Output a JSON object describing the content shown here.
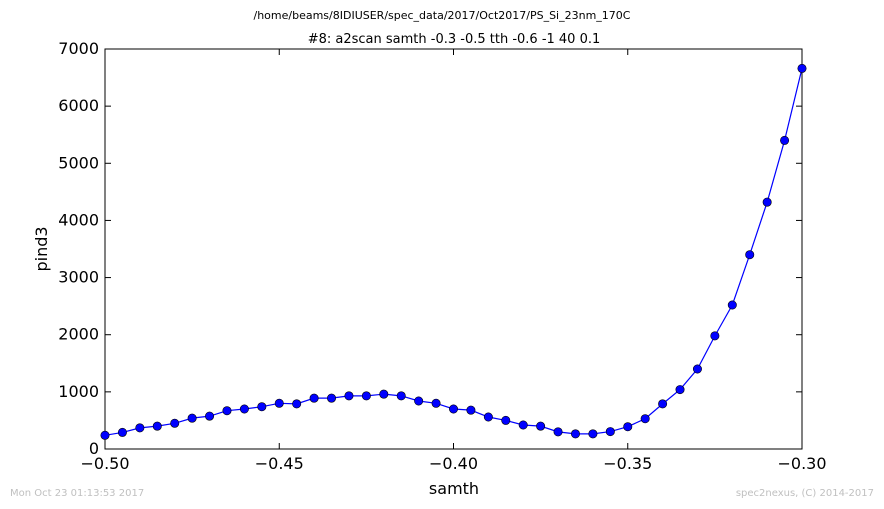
{
  "chart_data": {
    "type": "line",
    "suptitle": "/home/beams/8IDIUSER/spec_data/2017/Oct2017/PS_Si_23nm_170C",
    "title": "#8: a2scan  samth -0.3 -0.5  tth -0.6 -1  40 0.1",
    "xlabel": "samth",
    "ylabel": "pind3",
    "xlim": [
      -0.5,
      -0.3
    ],
    "ylim": [
      0,
      7000
    ],
    "xticks": [
      -0.5,
      -0.45,
      -0.4,
      -0.35,
      -0.3
    ],
    "xtick_labels": [
      "−0.50",
      "−0.45",
      "−0.40",
      "−0.35",
      "−0.30"
    ],
    "yticks": [
      0,
      1000,
      2000,
      3000,
      4000,
      5000,
      6000,
      7000
    ],
    "ytick_labels": [
      "0",
      "1000",
      "2000",
      "3000",
      "4000",
      "5000",
      "6000",
      "7000"
    ],
    "grid": false,
    "series": [
      {
        "color": "#0000ff",
        "marker": "circle",
        "x": [
          -0.5,
          -0.495,
          -0.49,
          -0.485,
          -0.48,
          -0.475,
          -0.47,
          -0.465,
          -0.46,
          -0.455,
          -0.45,
          -0.445,
          -0.44,
          -0.435,
          -0.43,
          -0.425,
          -0.42,
          -0.415,
          -0.41,
          -0.405,
          -0.4,
          -0.395,
          -0.39,
          -0.385,
          -0.38,
          -0.375,
          -0.37,
          -0.365,
          -0.36,
          -0.355,
          -0.35,
          -0.345,
          -0.34,
          -0.335,
          -0.33,
          -0.325,
          -0.32,
          -0.315,
          -0.31,
          -0.305,
          -0.3
        ],
        "y": [
          240,
          290,
          370,
          400,
          450,
          540,
          575,
          670,
          700,
          740,
          800,
          790,
          890,
          890,
          930,
          930,
          960,
          930,
          840,
          800,
          700,
          680,
          560,
          500,
          420,
          400,
          300,
          265,
          265,
          305,
          390,
          530,
          790,
          1040,
          1400,
          1980,
          2520,
          3400,
          4320,
          5400,
          6660
        ]
      }
    ]
  },
  "footer": {
    "timestamp": "Mon Oct 23 01:13:53 2017",
    "credit": "spec2nexus, (C) 2014-2017"
  }
}
